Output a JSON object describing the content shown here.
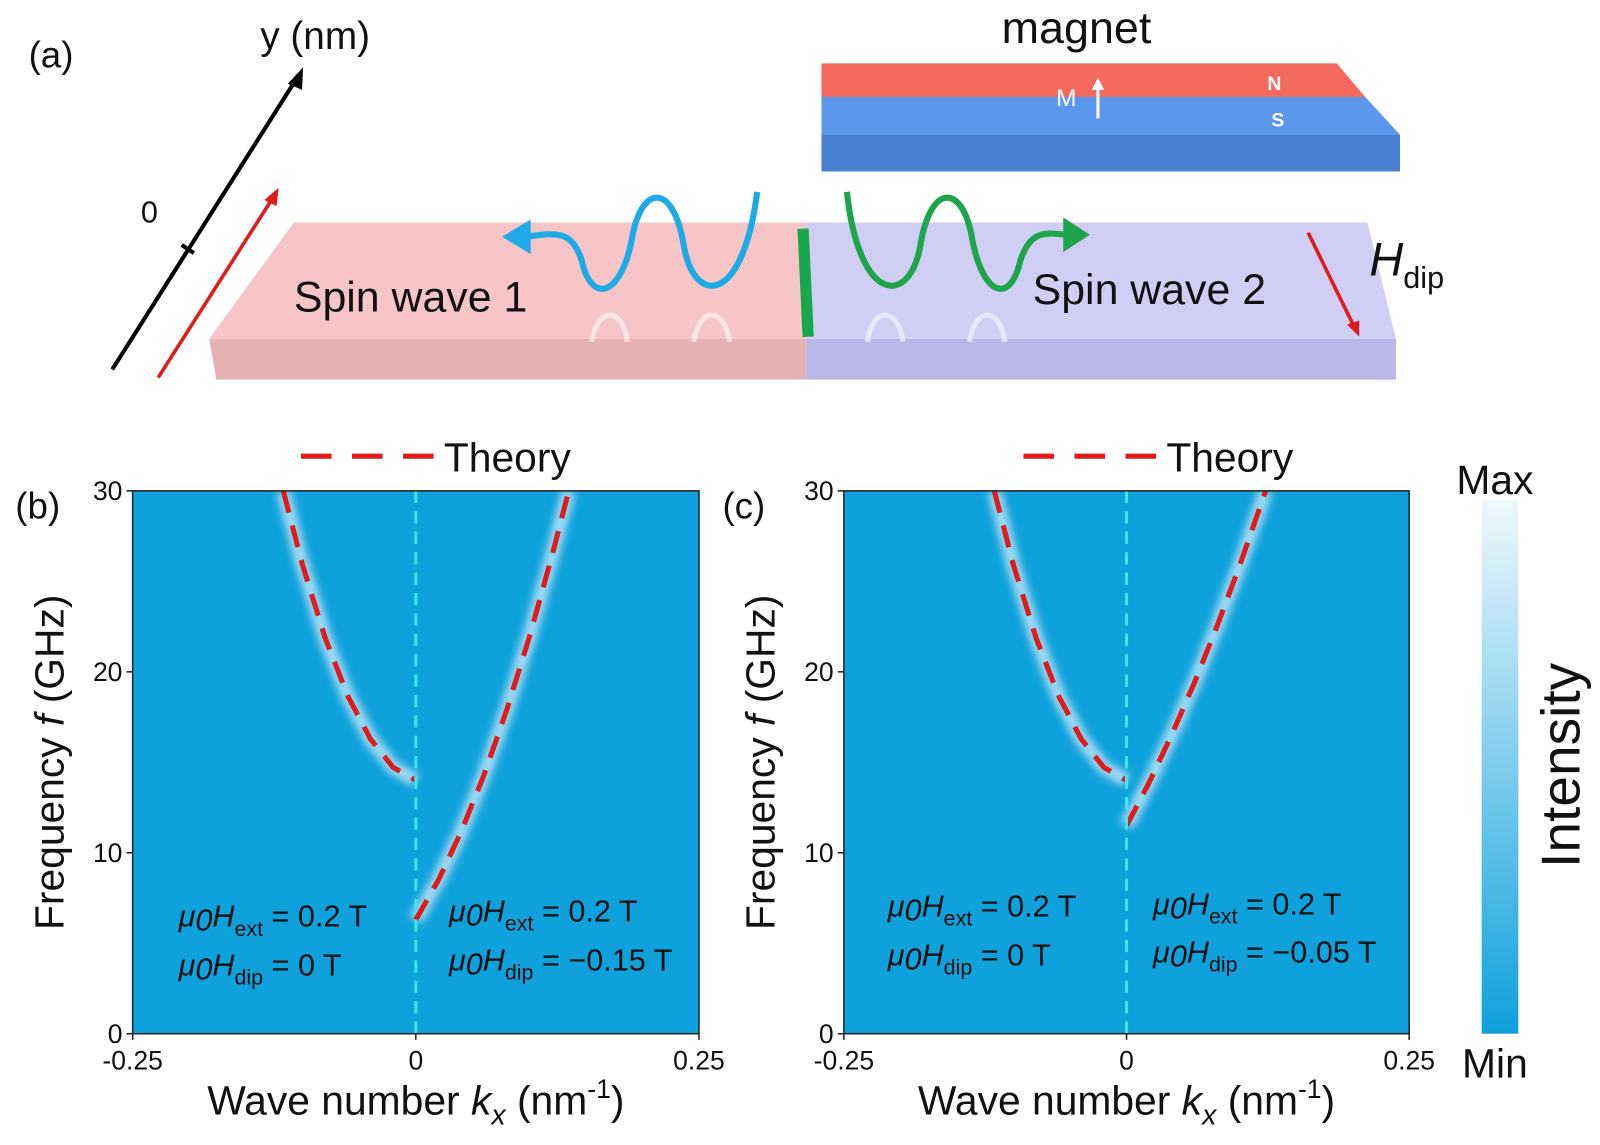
{
  "diagram": {
    "label": "(a)",
    "axis_label": "y (nm)",
    "axis_zero": "0",
    "magnet": "magnet",
    "m": "M",
    "n": "N",
    "s": "S",
    "wave1": "Spin wave 1",
    "wave2": "Spin wave 2",
    "h": "H",
    "h_sub": "dip"
  },
  "colorbar": {
    "label": "Intensity",
    "max": "Max",
    "min": "Min",
    "colors": [
      "#0ea1dc",
      "#eef8fc"
    ]
  },
  "chart_data": [
    {
      "type": "line",
      "panel": "(b)",
      "background": "#0ea1dc",
      "x_label": {
        "text": "Wave number ",
        "var": "k",
        "sub": "x",
        "unit": " (nm",
        "sup": "-1",
        "close": ")"
      },
      "y_label": {
        "text": "Frequency ",
        "var": "f",
        "unit": " (GHz)"
      },
      "xlim": [
        -0.25,
        0.25
      ],
      "xticks": [
        -0.25,
        0,
        0.25
      ],
      "ylim": [
        0,
        30
      ],
      "yticks": [
        0,
        10,
        20,
        30
      ],
      "vline_x": 0,
      "vline_color": "#3fe6f0",
      "x": [
        -0.117,
        -0.1,
        -0.08,
        -0.06,
        -0.04,
        -0.02,
        0,
        0,
        0,
        0.02,
        0.04,
        0.06,
        0.08,
        0.1,
        0.12,
        0.135
      ],
      "series": [
        {
          "name": "Theory",
          "color": "#e01b1b",
          "values": [
            30,
            25.9,
            21.86,
            18.66,
            16.28,
            14.72,
            14,
            null,
            6.3,
            8.5,
            11.16,
            14.27,
            17.84,
            21.87,
            26.36,
            30
          ]
        }
      ],
      "annotations": [
        {
          "mu": "μ",
          "mu_sub": "0",
          "h": "H",
          "h_sub": "ext",
          "rest": " = 0.2 T"
        },
        {
          "mu": "μ",
          "mu_sub": "0",
          "h": "H",
          "h_sub": "dip",
          "rest": " = 0 T"
        },
        {
          "mu": "μ",
          "mu_sub": "0",
          "h": "H",
          "h_sub": "ext",
          "rest": " = 0.2 T"
        },
        {
          "mu": "μ",
          "mu_sub": "0",
          "h": "H",
          "h_sub": "dip",
          "rest": " = −0.15 T"
        }
      ]
    },
    {
      "type": "line",
      "panel": "(c)",
      "background": "#0ea1dc",
      "x_label": {
        "text": "Wave number ",
        "var": "k",
        "sub": "x",
        "unit": " (nm",
        "sup": "-1",
        "close": ")"
      },
      "y_label": {
        "text": "Frequency ",
        "var": "f",
        "unit": " (GHz)"
      },
      "xlim": [
        -0.25,
        0.25
      ],
      "xticks": [
        -0.25,
        0,
        0.25
      ],
      "ylim": [
        0,
        30
      ],
      "yticks": [
        0,
        10,
        20,
        30
      ],
      "vline_x": 0,
      "vline_color": "#3fe6f0",
      "x": [
        -0.117,
        -0.1,
        -0.08,
        -0.06,
        -0.04,
        -0.02,
        0,
        0,
        0,
        0.02,
        0.04,
        0.06,
        0.08,
        0.1,
        0.123
      ],
      "series": [
        {
          "name": "Theory",
          "color": "#e01b1b",
          "values": [
            30,
            25.9,
            21.86,
            18.66,
            16.28,
            14.72,
            14,
            null,
            11.5,
            13.89,
            16.52,
            19.4,
            22.51,
            25.86,
            30
          ]
        }
      ],
      "annotations": [
        {
          "mu": "μ",
          "mu_sub": "0",
          "h": "H",
          "h_sub": "ext",
          "rest": " = 0.2 T"
        },
        {
          "mu": "μ",
          "mu_sub": "0",
          "h": "H",
          "h_sub": "dip",
          "rest": " = 0 T"
        },
        {
          "mu": "μ",
          "mu_sub": "0",
          "h": "H",
          "h_sub": "ext",
          "rest": " = 0.2 T"
        },
        {
          "mu": "μ",
          "mu_sub": "0",
          "h": "H",
          "h_sub": "dip",
          "rest": " = −0.05 T"
        }
      ]
    }
  ]
}
